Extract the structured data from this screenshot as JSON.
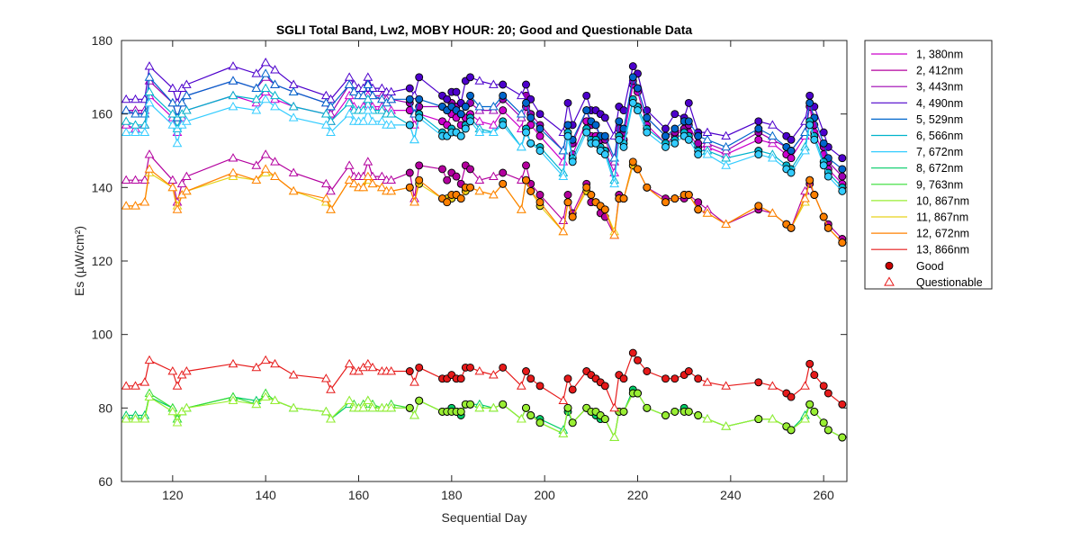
{
  "chart_data": {
    "type": "line",
    "title": "SGLI Total Band,  Lw2, MOBY HOUR: 20;  Good and Questionable Data",
    "xlabel": "Sequential Day",
    "ylabel": "Es (µW/cm²)",
    "xlim": [
      109,
      265
    ],
    "ylim": [
      60,
      180
    ],
    "xticks": [
      120,
      140,
      160,
      180,
      200,
      220,
      240,
      260
    ],
    "yticks": [
      60,
      80,
      100,
      120,
      140,
      160,
      180
    ],
    "legend_position": "outside-top-right",
    "x": [
      110,
      112,
      114,
      115,
      120,
      121,
      122,
      123,
      133,
      138,
      140,
      142,
      146,
      153,
      154,
      158,
      159,
      160,
      161,
      162,
      163,
      165,
      166,
      167,
      171,
      172,
      173,
      178,
      179,
      180,
      181,
      182,
      183,
      184,
      186,
      189,
      191,
      195,
      196,
      197,
      199,
      204,
      205,
      206,
      209,
      210,
      211,
      212,
      213,
      215,
      216,
      217,
      219,
      220,
      222,
      226,
      228,
      230,
      231,
      233,
      235,
      239,
      246,
      249,
      252,
      253,
      256,
      257,
      258,
      260,
      261,
      264
    ],
    "good_x": [
      171,
      173,
      178,
      179,
      180,
      181,
      182,
      183,
      184,
      191,
      196,
      197,
      199,
      205,
      206,
      209,
      210,
      211,
      212,
      213,
      216,
      217,
      219,
      220,
      222,
      226,
      228,
      230,
      231,
      233,
      246,
      252,
      253,
      257,
      258,
      260,
      261,
      264
    ],
    "series": [
      {
        "name": "1, 380nm",
        "color": "#cc00cc",
        "values": [
          157,
          156,
          157,
          165,
          159,
          155,
          159,
          161,
          165,
          163,
          166,
          164,
          162,
          160,
          158,
          165,
          162,
          161,
          162,
          165,
          162,
          162,
          160,
          161,
          161,
          157,
          160,
          158,
          157,
          160,
          159,
          157,
          159,
          160,
          158,
          157,
          161,
          156,
          162,
          157,
          154,
          147,
          154,
          149,
          158,
          154,
          154,
          150,
          150,
          144,
          154,
          153,
          168,
          166,
          157,
          152,
          154,
          156,
          155,
          151,
          151,
          149,
          153,
          152,
          149,
          148,
          154,
          162,
          155,
          149,
          145,
          141
        ]
      },
      {
        "name": "2, 412nm",
        "color": "#b3009e",
        "values": [
          142,
          142,
          142,
          149,
          142,
          136,
          141,
          143,
          148,
          146,
          149,
          147,
          144,
          141,
          139,
          146,
          143,
          143,
          143,
          147,
          143,
          143,
          142,
          142,
          144,
          137,
          146,
          145,
          142,
          144,
          143,
          141,
          146,
          145,
          142,
          143,
          144,
          142,
          146,
          141,
          138,
          131,
          138,
          133,
          141,
          136,
          136,
          133,
          132,
          127,
          138,
          137,
          146,
          145,
          140,
          137,
          137,
          137,
          138,
          136,
          134,
          130,
          134,
          133,
          130,
          129,
          139,
          141,
          138,
          132,
          130,
          126
        ]
      },
      {
        "name": "3, 443nm",
        "color": "#9e00b3",
        "values": [
          161,
          161,
          161,
          169,
          163,
          159,
          163,
          165,
          169,
          167,
          170,
          168,
          166,
          163,
          160,
          168,
          166,
          165,
          165,
          168,
          165,
          165,
          164,
          164,
          163,
          160,
          162,
          162,
          161,
          163,
          162,
          160,
          162,
          163,
          161,
          161,
          164,
          159,
          165,
          160,
          157,
          150,
          157,
          152,
          161,
          157,
          157,
          153,
          153,
          147,
          156,
          155,
          169,
          167,
          159,
          154,
          155,
          156,
          157,
          152,
          152,
          150,
          155,
          153,
          151,
          150,
          155,
          163,
          157,
          151,
          147,
          143
        ]
      },
      {
        "name": "4, 490nm",
        "color": "#4d00cc",
        "values": [
          164,
          164,
          164,
          173,
          167,
          163,
          167,
          168,
          173,
          171,
          174,
          172,
          168,
          165,
          164,
          170,
          168,
          167,
          167,
          170,
          167,
          167,
          166,
          166,
          167,
          165,
          170,
          165,
          164,
          166,
          166,
          163,
          169,
          170,
          169,
          168,
          168,
          165,
          168,
          164,
          160,
          155,
          163,
          157,
          165,
          161,
          161,
          160,
          159,
          154,
          162,
          161,
          173,
          171,
          161,
          156,
          160,
          159,
          163,
          155,
          155,
          154,
          158,
          157,
          154,
          153,
          158,
          165,
          162,
          155,
          151,
          148
        ]
      },
      {
        "name": "5, 529nm",
        "color": "#0066cc",
        "values": [
          161,
          160,
          160,
          170,
          163,
          159,
          163,
          165,
          169,
          167,
          171,
          168,
          166,
          163,
          162,
          168,
          166,
          165,
          165,
          168,
          165,
          164,
          163,
          164,
          164,
          160,
          164,
          162,
          161,
          162,
          161,
          160,
          162,
          165,
          162,
          162,
          165,
          160,
          163,
          159,
          156,
          150,
          157,
          153,
          161,
          158,
          157,
          154,
          154,
          148,
          158,
          156,
          170,
          167,
          159,
          154,
          156,
          158,
          158,
          154,
          153,
          151,
          156,
          154,
          151,
          150,
          155,
          163,
          159,
          152,
          148,
          145
        ]
      },
      {
        "name": "6, 566nm",
        "color": "#00b3cc",
        "values": [
          158,
          157,
          157,
          166,
          160,
          156,
          160,
          161,
          165,
          164,
          167,
          165,
          162,
          160,
          158,
          163,
          161,
          161,
          161,
          164,
          161,
          161,
          160,
          160,
          157,
          153,
          160,
          155,
          154,
          156,
          155,
          154,
          157,
          159,
          156,
          155,
          158,
          151,
          156,
          152,
          151,
          144,
          155,
          148,
          156,
          153,
          153,
          151,
          150,
          142,
          154,
          152,
          164,
          162,
          156,
          152,
          153,
          155,
          154,
          150,
          150,
          148,
          150,
          149,
          146,
          145,
          151,
          158,
          154,
          147,
          144,
          140
        ]
      },
      {
        "name": "7, 672nm",
        "color": "#33ccff",
        "values": [
          155,
          155,
          155,
          163,
          157,
          152,
          157,
          158,
          162,
          161,
          164,
          162,
          159,
          157,
          155,
          160,
          158,
          158,
          158,
          161,
          158,
          158,
          157,
          157,
          157,
          153,
          159,
          154,
          154,
          155,
          155,
          154,
          156,
          158,
          155,
          155,
          157,
          151,
          155,
          152,
          150,
          143,
          154,
          147,
          155,
          152,
          152,
          150,
          149,
          141,
          153,
          151,
          163,
          161,
          155,
          151,
          152,
          154,
          153,
          149,
          149,
          146,
          149,
          148,
          145,
          144,
          150,
          157,
          153,
          146,
          143,
          139
        ]
      },
      {
        "name": "8, 672nm",
        "color": "#00cc66",
        "values": [
          78,
          78,
          78,
          83,
          80,
          77,
          79,
          80,
          83,
          82,
          83,
          82,
          80,
          79,
          77,
          81,
          80,
          80,
          80,
          82,
          80,
          80,
          80,
          80,
          80,
          78,
          82,
          79,
          79,
          80,
          79,
          78,
          81,
          81,
          81,
          80,
          81,
          77,
          80,
          78,
          77,
          74,
          79,
          76,
          80,
          79,
          78,
          77,
          77,
          72,
          79,
          79,
          85,
          84,
          80,
          78,
          79,
          80,
          79,
          78,
          77,
          75,
          77,
          77,
          75,
          74,
          78,
          81,
          79,
          76,
          74,
          72
        ]
      },
      {
        "name": "9, 763nm",
        "color": "#33dd33",
        "values": [
          77,
          77,
          77,
          84,
          80,
          77,
          79,
          80,
          83,
          81,
          84,
          82,
          80,
          79,
          77,
          82,
          81,
          80,
          81,
          82,
          81,
          80,
          80,
          81,
          80,
          78,
          82,
          79,
          79,
          79,
          79,
          79,
          81,
          81,
          80,
          80,
          81,
          77,
          80,
          78,
          76,
          73,
          80,
          76,
          80,
          79,
          79,
          78,
          77,
          72,
          79,
          79,
          84,
          84,
          80,
          78,
          79,
          79,
          79,
          78,
          77,
          75,
          77,
          77,
          75,
          74,
          77,
          81,
          79,
          76,
          74,
          72
        ]
      },
      {
        "name": "10, 867nm",
        "color": "#99ee33",
        "values": [
          77,
          77,
          77,
          83,
          79,
          76,
          79,
          80,
          82,
          81,
          83,
          82,
          80,
          79,
          77,
          82,
          80,
          80,
          80,
          82,
          80,
          80,
          80,
          80,
          80,
          78,
          82,
          79,
          79,
          79,
          79,
          79,
          81,
          81,
          80,
          80,
          81,
          77,
          80,
          78,
          76,
          73,
          80,
          76,
          80,
          79,
          79,
          78,
          77,
          72,
          79,
          79,
          84,
          84,
          80,
          78,
          79,
          79,
          79,
          78,
          77,
          75,
          77,
          77,
          75,
          74,
          77,
          81,
          79,
          76,
          74,
          72
        ]
      },
      {
        "name": "11, 867nm",
        "color": "#e6d21a",
        "values": [
          135,
          135,
          136,
          144,
          140,
          135,
          138,
          139,
          143,
          142,
          144,
          143,
          139,
          136,
          134,
          142,
          141,
          140,
          140,
          142,
          141,
          140,
          139,
          139,
          140,
          136,
          141,
          137,
          137,
          137,
          138,
          137,
          139,
          140,
          139,
          138,
          141,
          134,
          142,
          139,
          135,
          128,
          136,
          132,
          139,
          138,
          136,
          135,
          134,
          128,
          137,
          137,
          146,
          145,
          140,
          136,
          137,
          138,
          138,
          134,
          133,
          130,
          135,
          133,
          130,
          129,
          136,
          142,
          138,
          132,
          129,
          125
        ]
      },
      {
        "name": "12, 672nm",
        "color": "#ff8000",
        "values": [
          135,
          135,
          136,
          145,
          140,
          134,
          138,
          139,
          144,
          142,
          145,
          143,
          139,
          137,
          134,
          142,
          141,
          140,
          140,
          143,
          141,
          140,
          139,
          139,
          140,
          136,
          142,
          137,
          136,
          138,
          138,
          137,
          140,
          140,
          139,
          138,
          141,
          134,
          142,
          139,
          136,
          128,
          136,
          132,
          140,
          138,
          136,
          135,
          134,
          127,
          137,
          137,
          147,
          145,
          140,
          136,
          137,
          138,
          138,
          134,
          133,
          130,
          135,
          133,
          130,
          129,
          137,
          142,
          138,
          132,
          129,
          125
        ]
      },
      {
        "name": "13, 866nm",
        "color": "#e61a1a",
        "values": [
          86,
          86,
          87,
          93,
          90,
          86,
          89,
          90,
          92,
          91,
          93,
          92,
          89,
          88,
          85,
          92,
          90,
          90,
          91,
          92,
          91,
          90,
          90,
          90,
          90,
          87,
          91,
          88,
          88,
          89,
          88,
          88,
          91,
          91,
          90,
          89,
          91,
          86,
          90,
          88,
          86,
          82,
          88,
          85,
          90,
          89,
          88,
          87,
          86,
          80,
          89,
          88,
          95,
          93,
          90,
          88,
          88,
          89,
          90,
          88,
          87,
          86,
          87,
          86,
          84,
          83,
          86,
          92,
          89,
          86,
          84,
          81
        ]
      }
    ],
    "legend_markers": [
      {
        "name": "Good",
        "marker": "circle",
        "color": "#cc0000"
      },
      {
        "name": "Questionable",
        "marker": "triangle",
        "color": "#e61a1a"
      }
    ]
  }
}
